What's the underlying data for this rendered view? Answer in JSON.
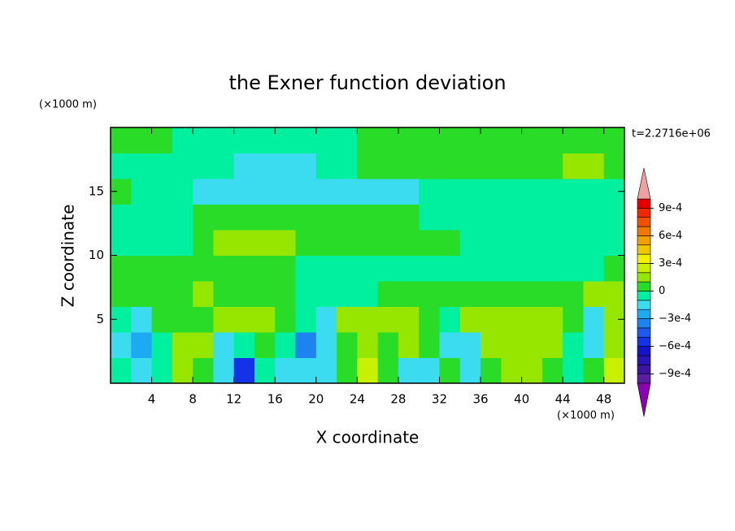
{
  "chart_data": {
    "type": "contour",
    "title": "the Exner function deviation",
    "x_label": "X coordinate",
    "y_label": "Z coordinate",
    "x_unit_label": "(×1000 m)",
    "y_unit_label": "(×1000 m)",
    "annotation": "t=2.2716e+06",
    "xlim": [
      0,
      50
    ],
    "ylim": [
      0,
      20
    ],
    "xticks": [
      4,
      8,
      12,
      16,
      20,
      24,
      28,
      32,
      36,
      40,
      44,
      48
    ],
    "yticks": [
      5,
      10,
      15
    ],
    "x": [
      1,
      3,
      5,
      7,
      9,
      11,
      13,
      15,
      17,
      19,
      21,
      23,
      25,
      27,
      29,
      31,
      33,
      35,
      37,
      39,
      41,
      43,
      45,
      47,
      49
    ],
    "y": [
      1,
      3,
      5,
      7,
      9,
      11,
      13,
      15,
      17,
      19
    ],
    "z": [
      [
        -5e-05,
        -0.00015,
        -5e-05,
        0.00015,
        5e-05,
        -0.00015,
        -0.00055,
        -5e-05,
        -0.00015,
        -0.00015,
        -0.00015,
        5e-05,
        0.00025,
        5e-05,
        -0.00015,
        -0.00015,
        5e-05,
        -0.00015,
        5e-05,
        0.00015,
        0.00015,
        5e-05,
        -5e-05,
        5e-05,
        0.00025
      ],
      [
        -0.00015,
        -0.00025,
        -5e-05,
        0.00015,
        0.00015,
        -0.00015,
        -5e-05,
        5e-05,
        -5e-05,
        -0.00035,
        -0.00015,
        5e-05,
        0.00015,
        5e-05,
        0.00015,
        5e-05,
        -0.00015,
        -0.00015,
        0.00015,
        0.00015,
        0.00015,
        0.00015,
        -5e-05,
        -0.00015,
        0.00015
      ],
      [
        -5e-05,
        -0.00015,
        5e-05,
        5e-05,
        5e-05,
        0.00015,
        0.00015,
        0.00015,
        5e-05,
        -5e-05,
        -0.00015,
        0.00015,
        0.00015,
        0.00015,
        0.00015,
        5e-05,
        -5e-05,
        0.00015,
        0.00015,
        0.00015,
        0.00015,
        0.00015,
        5e-05,
        -0.00015,
        0.00015
      ],
      [
        5e-05,
        5e-05,
        5e-05,
        5e-05,
        0.00015,
        5e-05,
        5e-05,
        5e-05,
        5e-05,
        -5e-05,
        -5e-05,
        -5e-05,
        -5e-05,
        5e-05,
        5e-05,
        5e-05,
        5e-05,
        5e-05,
        5e-05,
        5e-05,
        5e-05,
        5e-05,
        5e-05,
        0.00015,
        0.00015
      ],
      [
        5e-05,
        5e-05,
        5e-05,
        5e-05,
        5e-05,
        5e-05,
        5e-05,
        5e-05,
        5e-05,
        -5e-05,
        -5e-05,
        -5e-05,
        -5e-05,
        -5e-05,
        -5e-05,
        -5e-05,
        -5e-05,
        -5e-05,
        -5e-05,
        -5e-05,
        -5e-05,
        -5e-05,
        -5e-05,
        -5e-05,
        5e-05
      ],
      [
        -5e-05,
        -5e-05,
        -5e-05,
        -5e-05,
        5e-05,
        0.00015,
        0.00015,
        0.00015,
        0.00015,
        5e-05,
        5e-05,
        5e-05,
        5e-05,
        5e-05,
        5e-05,
        5e-05,
        5e-05,
        -5e-05,
        -5e-05,
        -5e-05,
        -5e-05,
        -5e-05,
        -5e-05,
        -5e-05,
        -5e-05
      ],
      [
        -5e-05,
        -5e-05,
        -5e-05,
        -5e-05,
        5e-05,
        5e-05,
        5e-05,
        5e-05,
        5e-05,
        5e-05,
        5e-05,
        5e-05,
        5e-05,
        5e-05,
        5e-05,
        -5e-05,
        -5e-05,
        -5e-05,
        -5e-05,
        -5e-05,
        -5e-05,
        -5e-05,
        -5e-05,
        -5e-05,
        -5e-05
      ],
      [
        5e-05,
        -5e-05,
        -5e-05,
        -5e-05,
        -0.00015,
        -0.00015,
        -0.00015,
        -0.00015,
        -0.00015,
        -0.00015,
        -0.00015,
        -0.00015,
        -0.00015,
        -0.00015,
        -0.00015,
        -5e-05,
        -5e-05,
        -5e-05,
        -5e-05,
        -5e-05,
        -5e-05,
        -5e-05,
        -5e-05,
        -5e-05,
        -5e-05
      ],
      [
        -5e-05,
        -5e-05,
        -5e-05,
        -5e-05,
        -5e-05,
        -5e-05,
        -0.00015,
        -0.00015,
        -0.00015,
        -0.00015,
        -5e-05,
        -5e-05,
        5e-05,
        5e-05,
        5e-05,
        5e-05,
        5e-05,
        5e-05,
        5e-05,
        5e-05,
        5e-05,
        5e-05,
        0.00015,
        0.00015,
        5e-05
      ],
      [
        5e-05,
        5e-05,
        5e-05,
        -5e-05,
        -5e-05,
        -5e-05,
        -5e-05,
        -5e-05,
        -5e-05,
        -5e-05,
        -5e-05,
        -5e-05,
        5e-05,
        5e-05,
        5e-05,
        5e-05,
        5e-05,
        5e-05,
        5e-05,
        5e-05,
        5e-05,
        5e-05,
        5e-05,
        5e-05,
        5e-05
      ]
    ],
    "levels": [
      -0.001,
      -0.0009,
      -0.0008,
      -0.0007,
      -0.0006,
      -0.0005,
      -0.0004,
      -0.0003,
      -0.0002,
      -0.0001,
      0,
      0.0001,
      0.0002,
      0.0003,
      0.0004,
      0.0005,
      0.0006,
      0.0007,
      0.0008,
      0.0009,
      0.001
    ],
    "colors": [
      "#5a1ea0",
      "#3c14a0",
      "#2814b4",
      "#1414c8",
      "#1432e6",
      "#1e5af0",
      "#1e82f0",
      "#1eaaf0",
      "#3cdcf0",
      "#00f0a0",
      "#28dc28",
      "#96e600",
      "#c8f000",
      "#f0f000",
      "#f0c800",
      "#f0a000",
      "#f07800",
      "#f05000",
      "#f02800",
      "#e60000"
    ],
    "under_color": "#8c00b4",
    "over_color": "#f0a0a0",
    "colorbar_ticks": [
      {
        "value": 0.0009,
        "label": "9e-4"
      },
      {
        "value": 0.0006,
        "label": "6e-4"
      },
      {
        "value": 0.0003,
        "label": "3e-4"
      },
      0,
      {
        "value": -0.0003,
        "label": "−3e-4"
      },
      {
        "value": -0.0006,
        "label": "−6e-4"
      },
      {
        "value": -0.0009,
        "label": "−9e-4"
      }
    ]
  }
}
